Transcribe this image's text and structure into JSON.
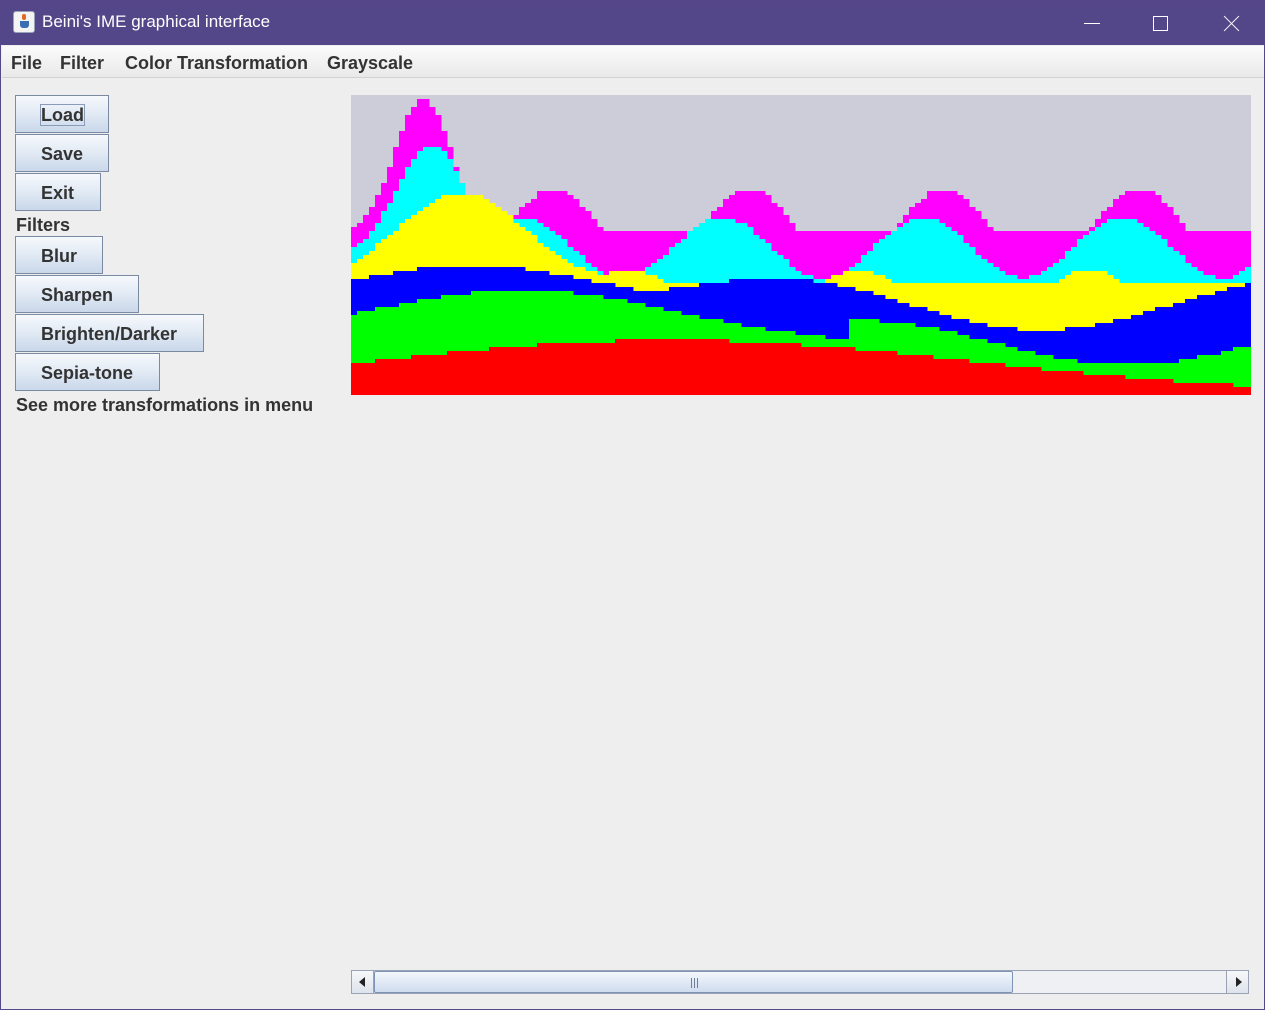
{
  "window": {
    "title": "Beini's IME graphical interface"
  },
  "menu": [
    "File",
    "Filter",
    "Color Transformation",
    "Grayscale"
  ],
  "buttons": {
    "load": "Load",
    "save": "Save",
    "exit": "Exit",
    "blur": "Blur",
    "sharpen": "Sharpen",
    "brighten": "Brighten/Darker",
    "sepia": "Sepia-tone"
  },
  "labels": {
    "filters": "Filters",
    "more": "See more transformations in menu"
  },
  "image": {
    "description_colors": {
      "background": "#cccdd8",
      "magenta": "#ff00ff",
      "cyan": "#00ffff",
      "yellow": "#ffff00",
      "blue": "#0000ff",
      "green": "#00ff00",
      "red": "#ff0000"
    }
  },
  "colors": {
    "titlebar": "#544789",
    "panel": "#eeeeee"
  }
}
